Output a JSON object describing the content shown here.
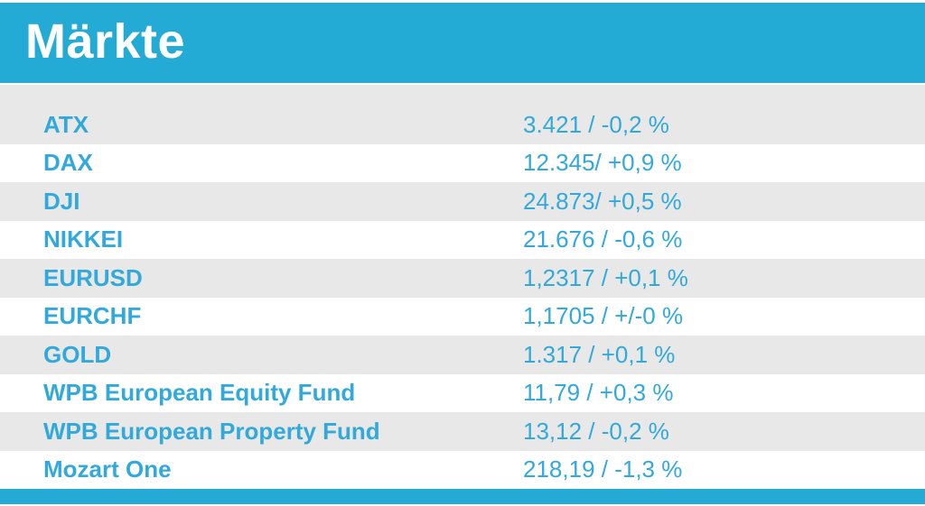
{
  "header": {
    "title": "Märkte"
  },
  "colors": {
    "accent": "#23aad5",
    "text_accent": "#31a9dc",
    "row_alt": "#e8e8e8",
    "row_plain": "#ffffff",
    "title_text": "#ffffff"
  },
  "chart_data": {
    "type": "table",
    "title": "Märkte",
    "rows": [
      {
        "label": "ATX",
        "value": "3.421 / -0,2 %"
      },
      {
        "label": "DAX",
        "value": "12.345/ +0,9 %"
      },
      {
        "label": "DJI",
        "value": "24.873/ +0,5 %"
      },
      {
        "label": "NIKKEI",
        "value": "21.676 / -0,6 %"
      },
      {
        "label": "EURUSD",
        "value": "1,2317 / +0,1 %"
      },
      {
        "label": "EURCHF",
        "value": "1,1705 / +/-0 %"
      },
      {
        "label": "GOLD",
        "value": "1.317 / +0,1 %"
      },
      {
        "label": "WPB European Equity Fund",
        "value": "11,79 / +0,3 %"
      },
      {
        "label": "WPB European Property Fund",
        "value": "13,12 / -0,2 %"
      },
      {
        "label": "Mozart One",
        "value": "218,19 / -1,3 %"
      }
    ]
  }
}
